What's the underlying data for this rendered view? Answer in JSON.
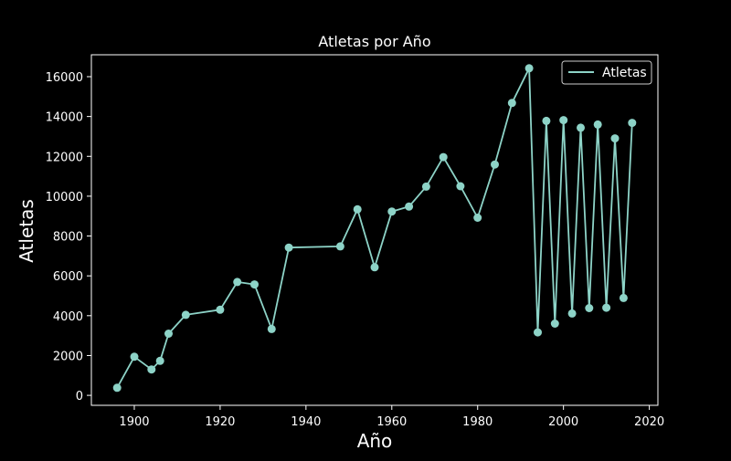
{
  "colors": {
    "background": "#000000",
    "foreground": "#ffffff",
    "series": "#8dd3c7"
  },
  "chart_data": {
    "type": "line",
    "title": "Atletas por Año",
    "xlabel": "Año",
    "ylabel": "Atletas",
    "xlim": [
      1890,
      2022
    ],
    "ylim": [
      -500,
      17100
    ],
    "xticks": [
      1900,
      1920,
      1940,
      1960,
      1980,
      2000,
      2020
    ],
    "yticks": [
      0,
      2000,
      4000,
      6000,
      8000,
      10000,
      12000,
      14000,
      16000
    ],
    "grid": false,
    "legend_position": "top-right",
    "series": [
      {
        "name": "Atletas",
        "marker": "circle",
        "x": [
          1896,
          1900,
          1904,
          1906,
          1908,
          1912,
          1920,
          1924,
          1928,
          1932,
          1936,
          1948,
          1952,
          1956,
          1960,
          1964,
          1968,
          1972,
          1976,
          1980,
          1984,
          1988,
          1992,
          1994,
          1996,
          1998,
          2000,
          2002,
          2004,
          2006,
          2008,
          2010,
          2012,
          2014,
          2016
        ],
        "y": [
          380,
          1940,
          1300,
          1730,
          3100,
          4040,
          4300,
          5690,
          5570,
          3330,
          7420,
          7480,
          9340,
          6430,
          9230,
          9480,
          10480,
          11960,
          10500,
          8920,
          11590,
          14680,
          16420,
          3160,
          13780,
          3600,
          13820,
          4110,
          13440,
          4380,
          13600,
          4400,
          12900,
          4890,
          13680
        ]
      }
    ]
  }
}
